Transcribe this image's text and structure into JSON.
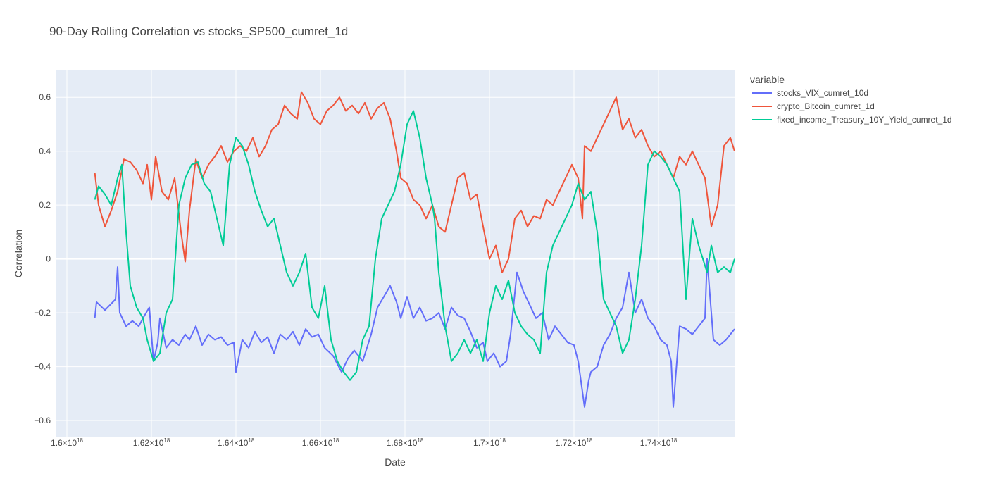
{
  "chart_data": {
    "type": "line",
    "title": "90-Day Rolling Correlation vs stocks_SP500_cumret_1d",
    "xlabel": "Date",
    "ylabel": "Correlation",
    "xlim": [
      1.5975e+18,
      1.758e+18
    ],
    "ylim": [
      -0.66,
      0.7
    ],
    "x_ticks": [
      {
        "value": 1.6e+18,
        "mant": "1.6",
        "sup": "18"
      },
      {
        "value": 1.62e+18,
        "mant": "1.62",
        "sup": "18"
      },
      {
        "value": 1.64e+18,
        "mant": "1.64",
        "sup": "18"
      },
      {
        "value": 1.66e+18,
        "mant": "1.66",
        "sup": "18"
      },
      {
        "value": 1.68e+18,
        "mant": "1.68",
        "sup": "18"
      },
      {
        "value": 1.7e+18,
        "mant": "1.7",
        "sup": "18"
      },
      {
        "value": 1.72e+18,
        "mant": "1.72",
        "sup": "18"
      },
      {
        "value": 1.74e+18,
        "mant": "1.74",
        "sup": "18"
      }
    ],
    "y_ticks": [
      {
        "value": 0.6,
        "label": "0.6"
      },
      {
        "value": 0.4,
        "label": "0.4"
      },
      {
        "value": 0.2,
        "label": "0.2"
      },
      {
        "value": 0,
        "label": "0"
      },
      {
        "value": -0.2,
        "label": "−0.2"
      },
      {
        "value": -0.4,
        "label": "−0.4"
      },
      {
        "value": -0.6,
        "label": "−0.6"
      }
    ],
    "grid": true,
    "legend": {
      "title": "variable",
      "position": "right"
    },
    "series": [
      {
        "name": "stocks_VIX_cumret_10d",
        "color": "#636efa",
        "x": [
          1.6066e+18,
          1.607e+18,
          1.609e+18,
          1.6115e+18,
          1.612e+18,
          1.6125e+18,
          1.614e+18,
          1.6155e+18,
          1.617e+18,
          1.618e+18,
          1.6195e+18,
          1.6205e+18,
          1.6215e+18,
          1.622e+18,
          1.6235e+18,
          1.625e+18,
          1.6265e+18,
          1.628e+18,
          1.629e+18,
          1.6305e+18,
          1.632e+18,
          1.6335e+18,
          1.635e+18,
          1.6365e+18,
          1.638e+18,
          1.6395e+18,
          1.64e+18,
          1.6415e+18,
          1.643e+18,
          1.6445e+18,
          1.646e+18,
          1.6475e+18,
          1.649e+18,
          1.6505e+18,
          1.652e+18,
          1.6535e+18,
          1.655e+18,
          1.6565e+18,
          1.658e+18,
          1.6595e+18,
          1.661e+18,
          1.663e+18,
          1.665e+18,
          1.6665e+18,
          1.668e+18,
          1.67e+18,
          1.672e+18,
          1.6735e+18,
          1.675e+18,
          1.6765e+18,
          1.678e+18,
          1.679e+18,
          1.6805e+18,
          1.682e+18,
          1.6835e+18,
          1.685e+18,
          1.6865e+18,
          1.688e+18,
          1.6895e+18,
          1.691e+18,
          1.6925e+18,
          1.694e+18,
          1.6955e+18,
          1.697e+18,
          1.6985e+18,
          1.6995e+18,
          1.701e+18,
          1.7025e+18,
          1.704e+18,
          1.705e+18,
          1.7065e+18,
          1.708e+18,
          1.7095e+18,
          1.711e+18,
          1.7125e+18,
          1.714e+18,
          1.7155e+18,
          1.717e+18,
          1.7185e+18,
          1.72e+18,
          1.721e+18,
          1.7225e+18,
          1.7235e+18,
          1.724e+18,
          1.7255e+18,
          1.727e+18,
          1.7285e+18,
          1.73e+18,
          1.7315e+18,
          1.733e+18,
          1.7345e+18,
          1.736e+18,
          1.7375e+18,
          1.739e+18,
          1.7405e+18,
          1.742e+18,
          1.743e+18,
          1.7435e+18,
          1.745e+18,
          1.7465e+18,
          1.748e+18,
          1.7495e+18,
          1.751e+18,
          1.7515e+18,
          1.753e+18,
          1.7545e+18,
          1.756e+18,
          1.758e+18
        ],
        "y": [
          -0.22,
          -0.16,
          -0.19,
          -0.15,
          -0.03,
          -0.2,
          -0.25,
          -0.23,
          -0.25,
          -0.22,
          -0.18,
          -0.38,
          -0.31,
          -0.22,
          -0.33,
          -0.3,
          -0.32,
          -0.28,
          -0.3,
          -0.25,
          -0.32,
          -0.28,
          -0.3,
          -0.29,
          -0.32,
          -0.31,
          -0.42,
          -0.3,
          -0.33,
          -0.27,
          -0.31,
          -0.29,
          -0.35,
          -0.28,
          -0.3,
          -0.27,
          -0.32,
          -0.26,
          -0.29,
          -0.28,
          -0.33,
          -0.36,
          -0.42,
          -0.37,
          -0.34,
          -0.38,
          -0.28,
          -0.18,
          -0.14,
          -0.1,
          -0.16,
          -0.22,
          -0.14,
          -0.22,
          -0.18,
          -0.23,
          -0.22,
          -0.2,
          -0.26,
          -0.18,
          -0.21,
          -0.22,
          -0.27,
          -0.33,
          -0.31,
          -0.38,
          -0.35,
          -0.4,
          -0.38,
          -0.28,
          -0.05,
          -0.12,
          -0.17,
          -0.22,
          -0.2,
          -0.3,
          -0.25,
          -0.28,
          -0.31,
          -0.32,
          -0.38,
          -0.55,
          -0.45,
          -0.42,
          -0.4,
          -0.32,
          -0.28,
          -0.22,
          -0.18,
          -0.05,
          -0.2,
          -0.15,
          -0.22,
          -0.25,
          -0.3,
          -0.32,
          -0.38,
          -0.55,
          -0.25,
          -0.26,
          -0.28,
          -0.25,
          -0.22,
          0.0,
          -0.3,
          -0.32,
          -0.3,
          -0.26
        ]
      },
      {
        "name": "crypto_Bitcoin_cumret_1d",
        "color": "#ef553b",
        "x": [
          1.6066e+18,
          1.6075e+18,
          1.609e+18,
          1.6105e+18,
          1.612e+18,
          1.6135e+18,
          1.615e+18,
          1.6165e+18,
          1.618e+18,
          1.619e+18,
          1.62e+18,
          1.621e+18,
          1.6225e+18,
          1.624e+18,
          1.6255e+18,
          1.627e+18,
          1.628e+18,
          1.629e+18,
          1.6305e+18,
          1.632e+18,
          1.6335e+18,
          1.635e+18,
          1.6365e+18,
          1.638e+18,
          1.6395e+18,
          1.641e+18,
          1.6425e+18,
          1.644e+18,
          1.6455e+18,
          1.647e+18,
          1.6485e+18,
          1.65e+18,
          1.6515e+18,
          1.653e+18,
          1.6545e+18,
          1.6555e+18,
          1.657e+18,
          1.6585e+18,
          1.66e+18,
          1.6615e+18,
          1.663e+18,
          1.6645e+18,
          1.666e+18,
          1.6675e+18,
          1.669e+18,
          1.6705e+18,
          1.672e+18,
          1.6735e+18,
          1.675e+18,
          1.6765e+18,
          1.678e+18,
          1.679e+18,
          1.6805e+18,
          1.682e+18,
          1.6835e+18,
          1.685e+18,
          1.6865e+18,
          1.688e+18,
          1.6895e+18,
          1.691e+18,
          1.6925e+18,
          1.694e+18,
          1.6955e+18,
          1.697e+18,
          1.6985e+18,
          1.7e+18,
          1.7015e+18,
          1.703e+18,
          1.7045e+18,
          1.706e+18,
          1.7075e+18,
          1.709e+18,
          1.7105e+18,
          1.712e+18,
          1.7135e+18,
          1.715e+18,
          1.7165e+18,
          1.718e+18,
          1.7195e+18,
          1.721e+18,
          1.722e+18,
          1.7225e+18,
          1.724e+18,
          1.7255e+18,
          1.727e+18,
          1.7285e+18,
          1.73e+18,
          1.7315e+18,
          1.733e+18,
          1.7345e+18,
          1.736e+18,
          1.7375e+18,
          1.739e+18,
          1.7405e+18,
          1.742e+18,
          1.7435e+18,
          1.745e+18,
          1.7465e+18,
          1.748e+18,
          1.7495e+18,
          1.751e+18,
          1.7525e+18,
          1.754e+18,
          1.7555e+18,
          1.757e+18,
          1.758e+18
        ],
        "y": [
          0.32,
          0.2,
          0.12,
          0.18,
          0.25,
          0.37,
          0.36,
          0.33,
          0.28,
          0.35,
          0.22,
          0.38,
          0.25,
          0.22,
          0.3,
          0.1,
          -0.01,
          0.18,
          0.37,
          0.3,
          0.35,
          0.38,
          0.42,
          0.36,
          0.4,
          0.42,
          0.4,
          0.45,
          0.38,
          0.42,
          0.48,
          0.5,
          0.57,
          0.54,
          0.52,
          0.62,
          0.58,
          0.52,
          0.5,
          0.55,
          0.57,
          0.6,
          0.55,
          0.57,
          0.54,
          0.58,
          0.52,
          0.56,
          0.58,
          0.52,
          0.4,
          0.3,
          0.28,
          0.22,
          0.2,
          0.15,
          0.2,
          0.12,
          0.1,
          0.2,
          0.3,
          0.32,
          0.22,
          0.24,
          0.12,
          0.0,
          0.05,
          -0.05,
          0.0,
          0.15,
          0.18,
          0.12,
          0.16,
          0.15,
          0.22,
          0.2,
          0.25,
          0.3,
          0.35,
          0.3,
          0.15,
          0.42,
          0.4,
          0.45,
          0.5,
          0.55,
          0.6,
          0.48,
          0.52,
          0.45,
          0.48,
          0.42,
          0.38,
          0.4,
          0.35,
          0.3,
          0.38,
          0.35,
          0.4,
          0.35,
          0.3,
          0.12,
          0.2,
          0.42,
          0.45,
          0.4
        ]
      },
      {
        "name": "fixed_income_Treasury_10Y_Yield_cumret_1d",
        "color": "#00cc96",
        "x": [
          1.6066e+18,
          1.6075e+18,
          1.609e+18,
          1.6105e+18,
          1.612e+18,
          1.613e+18,
          1.614e+18,
          1.615e+18,
          1.6165e+18,
          1.618e+18,
          1.619e+18,
          1.6205e+18,
          1.622e+18,
          1.6235e+18,
          1.625e+18,
          1.6265e+18,
          1.628e+18,
          1.6295e+18,
          1.631e+18,
          1.6325e+18,
          1.634e+18,
          1.6355e+18,
          1.637e+18,
          1.6385e+18,
          1.64e+18,
          1.6415e+18,
          1.643e+18,
          1.6445e+18,
          1.646e+18,
          1.6475e+18,
          1.649e+18,
          1.6505e+18,
          1.652e+18,
          1.6535e+18,
          1.655e+18,
          1.6565e+18,
          1.658e+18,
          1.6595e+18,
          1.661e+18,
          1.6625e+18,
          1.664e+18,
          1.6655e+18,
          1.667e+18,
          1.6685e+18,
          1.67e+18,
          1.6715e+18,
          1.673e+18,
          1.6745e+18,
          1.676e+18,
          1.6775e+18,
          1.679e+18,
          1.6805e+18,
          1.682e+18,
          1.6835e+18,
          1.685e+18,
          1.6865e+18,
          1.687e+18,
          1.688e+18,
          1.6895e+18,
          1.691e+18,
          1.6925e+18,
          1.694e+18,
          1.6955e+18,
          1.697e+18,
          1.6985e+18,
          1.7e+18,
          1.7015e+18,
          1.703e+18,
          1.7045e+18,
          1.706e+18,
          1.7075e+18,
          1.709e+18,
          1.7105e+18,
          1.712e+18,
          1.7135e+18,
          1.715e+18,
          1.7165e+18,
          1.718e+18,
          1.7195e+18,
          1.721e+18,
          1.7225e+18,
          1.724e+18,
          1.7255e+18,
          1.727e+18,
          1.7285e+18,
          1.73e+18,
          1.7315e+18,
          1.733e+18,
          1.7345e+18,
          1.736e+18,
          1.7375e+18,
          1.739e+18,
          1.7405e+18,
          1.742e+18,
          1.7435e+18,
          1.745e+18,
          1.7465e+18,
          1.748e+18,
          1.7495e+18,
          1.7505e+18,
          1.7515e+18,
          1.7525e+18,
          1.754e+18,
          1.7555e+18,
          1.757e+18,
          1.758e+18
        ],
        "y": [
          0.22,
          0.27,
          0.24,
          0.2,
          0.3,
          0.35,
          0.1,
          -0.1,
          -0.18,
          -0.22,
          -0.3,
          -0.38,
          -0.35,
          -0.2,
          -0.15,
          0.2,
          0.3,
          0.35,
          0.36,
          0.28,
          0.25,
          0.15,
          0.05,
          0.35,
          0.45,
          0.42,
          0.35,
          0.25,
          0.18,
          0.12,
          0.15,
          0.05,
          -0.05,
          -0.1,
          -0.05,
          0.02,
          -0.18,
          -0.22,
          -0.1,
          -0.3,
          -0.38,
          -0.42,
          -0.45,
          -0.42,
          -0.3,
          -0.25,
          0.0,
          0.15,
          0.2,
          0.25,
          0.35,
          0.5,
          0.55,
          0.45,
          0.3,
          0.2,
          0.15,
          -0.05,
          -0.25,
          -0.38,
          -0.35,
          -0.3,
          -0.35,
          -0.3,
          -0.38,
          -0.2,
          -0.1,
          -0.15,
          -0.08,
          -0.2,
          -0.25,
          -0.28,
          -0.3,
          -0.35,
          -0.05,
          0.05,
          0.1,
          0.15,
          0.2,
          0.28,
          0.22,
          0.25,
          0.1,
          -0.15,
          -0.2,
          -0.25,
          -0.35,
          -0.3,
          -0.15,
          0.05,
          0.35,
          0.4,
          0.38,
          0.35,
          0.3,
          0.25,
          -0.15,
          0.15,
          0.05,
          0.0,
          -0.05,
          0.05,
          -0.05,
          -0.03,
          -0.05,
          0.0
        ]
      }
    ]
  }
}
